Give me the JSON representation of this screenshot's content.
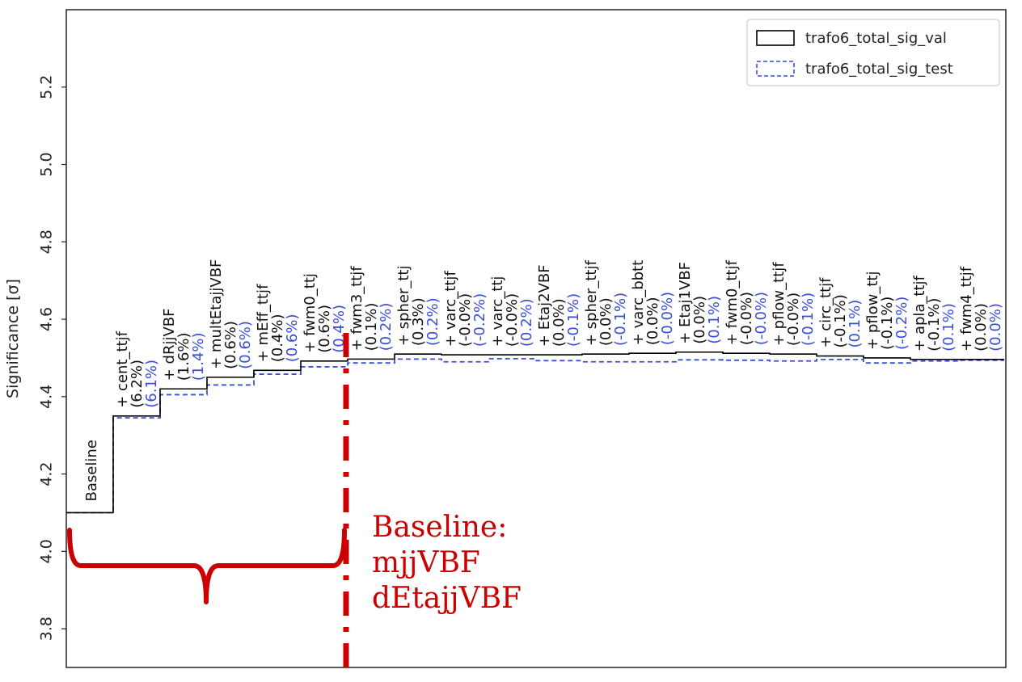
{
  "chart_data": {
    "type": "line",
    "title": "",
    "xlabel": "",
    "ylabel": "Significance [σ]",
    "ylim": [
      3.7,
      5.4
    ],
    "yticks": [
      3.8,
      4.0,
      4.2,
      4.4,
      4.6,
      4.8,
      5.0,
      5.2
    ],
    "legend_position": "top-right",
    "steps": [
      {
        "name": "Baseline",
        "val_label": "",
        "test_label": "",
        "val": 4.1,
        "test": 4.1
      },
      {
        "name": "+ cent_ttjf",
        "val_label": "(6.2%)",
        "test_label": "(6.1%)",
        "val": 4.35,
        "test": 4.345
      },
      {
        "name": "+ dRjjVBF",
        "val_label": "(1.6%)",
        "test_label": "(1.4%)",
        "val": 4.42,
        "test": 4.405
      },
      {
        "name": "+ multEtajjVBF",
        "val_label": "(0.6%)",
        "test_label": "(0.6%)",
        "val": 4.45,
        "test": 4.43
      },
      {
        "name": "+ mEff_ttjf",
        "val_label": "(0.4%)",
        "test_label": "(0.6%)",
        "val": 4.468,
        "test": 4.458
      },
      {
        "name": "+ fwm0_ttj",
        "val_label": "(0.6%)",
        "test_label": "(0.4%)",
        "val": 4.492,
        "test": 4.477
      },
      {
        "name": "+ fwm3_ttjf",
        "val_label": "(0.1%)",
        "test_label": "(0.2%)",
        "val": 4.497,
        "test": 4.487
      },
      {
        "name": "+ spher_ttj",
        "val_label": "(0.3%)",
        "test_label": "(0.2%)",
        "val": 4.51,
        "test": 4.497
      },
      {
        "name": "+ varc_ttjf",
        "val_label": "(-0.0%)",
        "test_label": "(-0.2%)",
        "val": 4.508,
        "test": 4.49
      },
      {
        "name": "+ varc_ttj",
        "val_label": "(-0.0%)",
        "test_label": "(0.2%)",
        "val": 4.508,
        "test": 4.498
      },
      {
        "name": "+ Etaj2VBF",
        "val_label": "(0.0%)",
        "test_label": "(-0.1%)",
        "val": 4.508,
        "test": 4.493
      },
      {
        "name": "+ spher_ttjf",
        "val_label": "(0.0%)",
        "test_label": "(-0.1%)",
        "val": 4.51,
        "test": 4.49
      },
      {
        "name": "+ varc_bbtt",
        "val_label": "(0.0%)",
        "test_label": "(-0.0%)",
        "val": 4.512,
        "test": 4.49
      },
      {
        "name": "+ Etaj1VBF",
        "val_label": "(0.0%)",
        "test_label": "(0.1%)",
        "val": 4.515,
        "test": 4.495
      },
      {
        "name": "+ fwm0_ttjf",
        "val_label": "(-0.0%)",
        "test_label": "(-0.0%)",
        "val": 4.512,
        "test": 4.494
      },
      {
        "name": "+ pflow_ttjf",
        "val_label": "(-0.0%)",
        "test_label": "(-0.1%)",
        "val": 4.51,
        "test": 4.492
      },
      {
        "name": "+ circ_ttjf",
        "val_label": "(-0.1%)",
        "test_label": "(0.1%)",
        "val": 4.505,
        "test": 4.496
      },
      {
        "name": "+ pflow_ttj",
        "val_label": "(-0.1%)",
        "test_label": "(-0.2%)",
        "val": 4.5,
        "test": 4.487
      },
      {
        "name": "+ apla_ttjf",
        "val_label": "(-0.1%)",
        "test_label": "(0.1%)",
        "val": 4.496,
        "test": 4.492
      },
      {
        "name": "+ fwm4_ttjf",
        "val_label": "(0.0%)",
        "test_label": "(0.0%)",
        "val": 4.496,
        "test": 4.494
      }
    ],
    "series": [
      {
        "name": "trafo6_total_sig_val",
        "color": "#000000",
        "style": "solid"
      },
      {
        "name": "trafo6_total_sig_test",
        "color": "#3a4ed8",
        "style": "dashed"
      }
    ]
  },
  "annotation": {
    "lines": [
      "Baseline:",
      "mjjVBF",
      "dEtajjVBF"
    ],
    "color": "#cc0000"
  }
}
